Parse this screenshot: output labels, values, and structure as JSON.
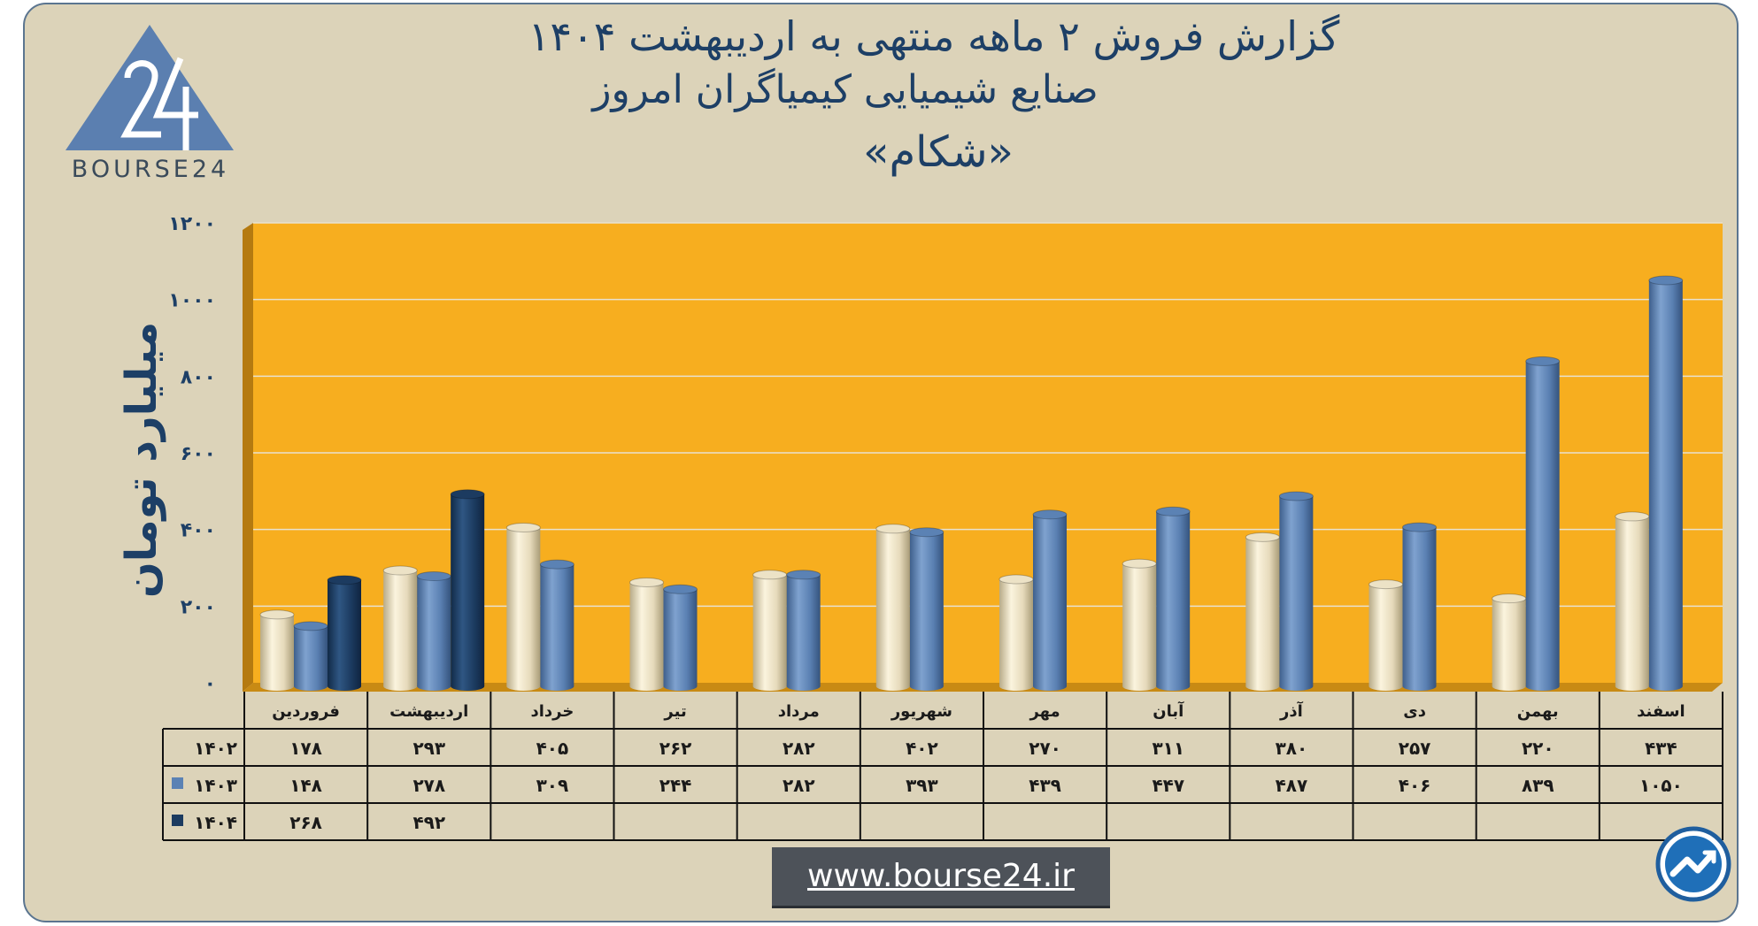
{
  "title": {
    "line1": "گزارش  فروش ۲ ماهه منتهی به اردیبهشت ۱۴۰۴",
    "line2": "صنایع شیمیایی کیمیاگران امروز",
    "line3": "«شکام»"
  },
  "logo": {
    "text": "BOURSE24",
    "icon": "bourse24-triangle-logo"
  },
  "website": "www.bourse24.ir",
  "badge_icon": "trend-up-circle-icon",
  "colors": {
    "background": "#dcd3b9",
    "plot_area": "#f7ae1f",
    "series_1402": "#ece2c6",
    "series_1403": "#5b82b4",
    "series_1404": "#1c3b60",
    "title": "#1d3f66"
  },
  "chart_data": {
    "type": "bar",
    "style": "3d-cylinder",
    "ylabel": "میلیارد تومان",
    "ylim": [
      0,
      1200
    ],
    "yticks": [
      "۰",
      "۲۰۰",
      "۴۰۰",
      "۶۰۰",
      "۸۰۰",
      "۱۰۰۰",
      "۱۲۰۰"
    ],
    "ytick_values": [
      0,
      200,
      400,
      600,
      800,
      1000,
      1200
    ],
    "grid": true,
    "legend": "data-table-below",
    "categories": [
      "فروردین",
      "اردیبهشت",
      "خرداد",
      "تیر",
      "مرداد",
      "شهریور",
      "مهر",
      "آبان",
      "آذر",
      "دی",
      "بهمن",
      "اسفند"
    ],
    "series": [
      {
        "name": "۱۴۰۲",
        "values": [
          178,
          293,
          405,
          262,
          282,
          402,
          270,
          311,
          380,
          257,
          220,
          434
        ],
        "labels": [
          "۱۷۸",
          "۲۹۳",
          "۴۰۵",
          "۲۶۲",
          "۲۸۲",
          "۴۰۲",
          "۲۷۰",
          "۳۱۱",
          "۳۸۰",
          "۲۵۷",
          "۲۲۰",
          "۴۳۴"
        ]
      },
      {
        "name": "۱۴۰۳",
        "values": [
          148,
          278,
          309,
          244,
          282,
          393,
          439,
          447,
          487,
          406,
          839,
          1050
        ],
        "labels": [
          "۱۴۸",
          "۲۷۸",
          "۳۰۹",
          "۲۴۴",
          "۲۸۲",
          "۳۹۳",
          "۴۳۹",
          "۴۴۷",
          "۴۸۷",
          "۴۰۶",
          "۸۳۹",
          "۱۰۵۰"
        ]
      },
      {
        "name": "۱۴۰۴",
        "values": [
          268,
          492,
          null,
          null,
          null,
          null,
          null,
          null,
          null,
          null,
          null,
          null
        ],
        "labels": [
          "۲۶۸",
          "۴۹۲",
          "",
          "",
          "",
          "",
          "",
          "",
          "",
          "",
          "",
          ""
        ]
      }
    ]
  }
}
